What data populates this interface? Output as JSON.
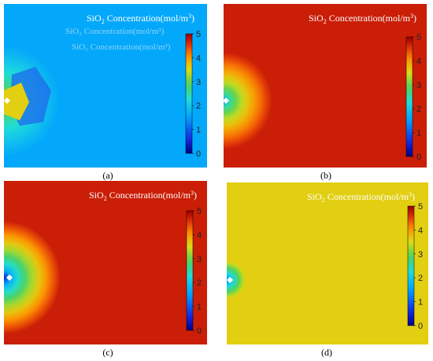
{
  "chart_data": [
    {
      "type": "heatmap",
      "panel": "(a)",
      "title_prefix": "SiO",
      "title_sub": "2",
      "title_suffix": " Concentration(mol/m",
      "title_sup": "3",
      "title_close": ")",
      "colorbar_range": [
        0,
        5
      ],
      "colorbar_ticks": [
        "0",
        "1",
        "2",
        "3",
        "4",
        "5"
      ],
      "background_value": 1.6,
      "source_value": 3.6,
      "ghost_text": [
        "SiO₂ Concentration(mol/m³)",
        "SiO₂ Concentration(mol/m³)"
      ]
    },
    {
      "type": "heatmap",
      "panel": "(b)",
      "title_prefix": "SiO",
      "title_sub": "2",
      "title_suffix": " Concentration(mol/m",
      "title_sup": "3",
      "title_close": ")",
      "colorbar_range": [
        0,
        5
      ],
      "colorbar_ticks": [
        "0",
        "1",
        "2",
        "3",
        "4",
        "5"
      ],
      "background_value": 4.7,
      "source_value": 1.5
    },
    {
      "type": "heatmap",
      "panel": "(c)",
      "title_prefix": "SiO",
      "title_sub": "2",
      "title_suffix": " Concentration(mol/m",
      "title_sup": "3",
      "title_close": ")",
      "colorbar_range": [
        0,
        5
      ],
      "colorbar_ticks": [
        "0",
        "1",
        "2",
        "3",
        "4",
        "5"
      ],
      "background_value": 4.7,
      "source_value": 0.5
    },
    {
      "type": "heatmap",
      "panel": "(d)",
      "title_prefix": "SiO",
      "title_sub": "2",
      "title_suffix": " Concentration(mol/m",
      "title_sup": "3",
      "title_close": ")",
      "colorbar_range": [
        0,
        5
      ],
      "colorbar_ticks": [
        "0",
        "1",
        "2",
        "3",
        "4",
        "5"
      ],
      "background_value": 3.6,
      "source_value": 1.0
    }
  ],
  "labels": [
    "(a)",
    "(b)",
    "(c)",
    "(d)"
  ]
}
